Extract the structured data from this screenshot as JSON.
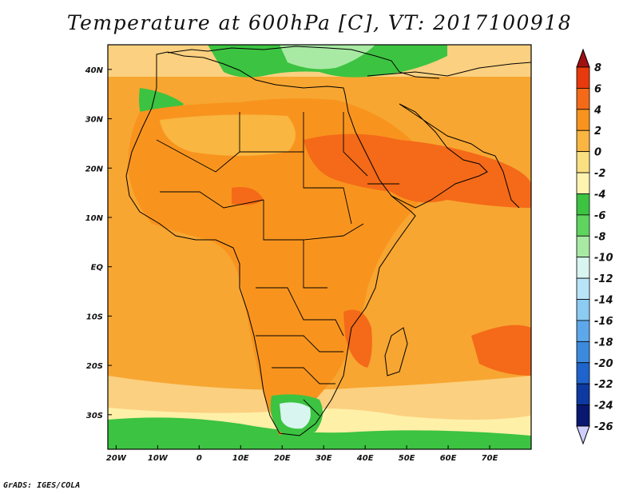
{
  "title": "Temperature at 600hPa [C], VT: 2017100918",
  "footer": "GrADS: IGES/COLA",
  "colors": {
    "ocean_base": "#f7a631",
    "frame": "#000000",
    "borders": "#000000"
  },
  "map": {
    "lon_range": [
      -22,
      80
    ],
    "lat_range": [
      -37,
      45
    ],
    "lon_ticks": [
      {
        "value": -20,
        "label": "20W"
      },
      {
        "value": -10,
        "label": "10W"
      },
      {
        "value": 0,
        "label": "0"
      },
      {
        "value": 10,
        "label": "10E"
      },
      {
        "value": 20,
        "label": "20E"
      },
      {
        "value": 30,
        "label": "30E"
      },
      {
        "value": 40,
        "label": "40E"
      },
      {
        "value": 50,
        "label": "50E"
      },
      {
        "value": 60,
        "label": "60E"
      },
      {
        "value": 70,
        "label": "70E"
      }
    ],
    "lat_ticks": [
      {
        "value": 40,
        "label": "40N"
      },
      {
        "value": 30,
        "label": "30N"
      },
      {
        "value": 20,
        "label": "20N"
      },
      {
        "value": 10,
        "label": "10N"
      },
      {
        "value": 0,
        "label": "EQ"
      },
      {
        "value": -10,
        "label": "10S"
      },
      {
        "value": -20,
        "label": "20S"
      },
      {
        "value": -30,
        "label": "30S"
      }
    ]
  },
  "colorbar": {
    "labels": [
      "8",
      "6",
      "4",
      "2",
      "0",
      "-2",
      "-4",
      "-6",
      "-8",
      "-10",
      "-12",
      "-14",
      "-16",
      "-18",
      "-20",
      "-22",
      "-24",
      "-26"
    ],
    "colors": [
      "#a01010",
      "#e83a0c",
      "#f46a18",
      "#f8941e",
      "#f9b640",
      "#fbe081",
      "#fff3b0",
      "#3cc341",
      "#5fd55f",
      "#a8eaa4",
      "#d8f5f0",
      "#b9e3f7",
      "#8ccbf2",
      "#5ca8ea",
      "#3c8ade",
      "#1e64cc",
      "#0d3aa0",
      "#081870",
      "#cfcfff"
    ]
  }
}
